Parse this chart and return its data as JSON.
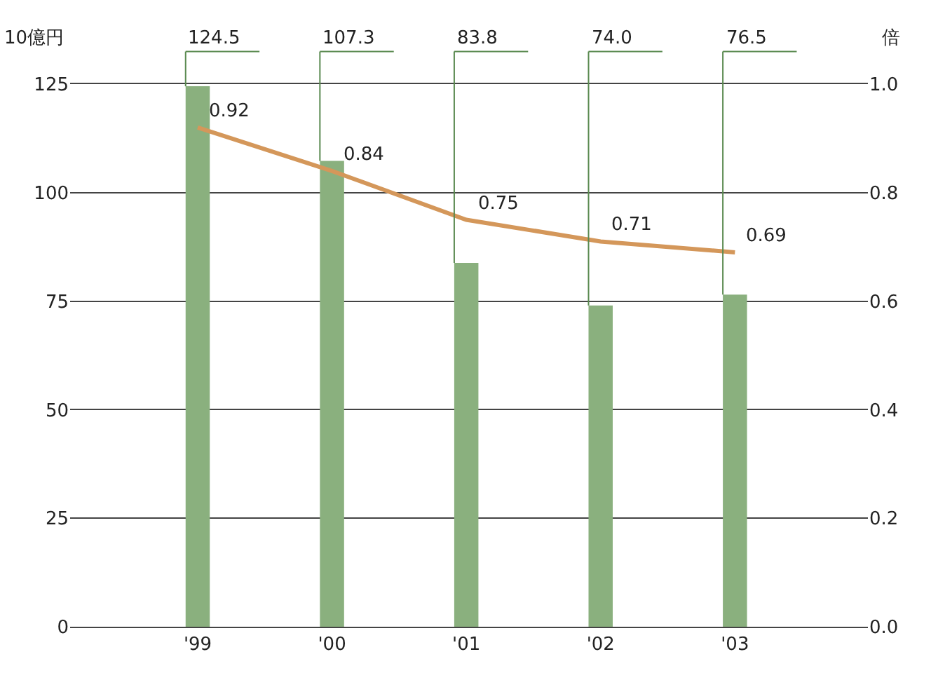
{
  "chart_data": {
    "type": "bar",
    "ylabel": "10億円",
    "y2label": "倍",
    "categories": [
      "'99",
      "'00",
      "'01",
      "'02",
      "'03"
    ],
    "series": [
      {
        "color": "#8ab07e",
        "values": [
          124.5,
          107.3,
          83.8,
          74.0,
          76.5
        ],
        "value_labels": [
          "124.5",
          "107.3",
          "83.8",
          "74.0",
          "76.5"
        ]
      },
      {
        "type": "line",
        "axis": "y2",
        "color": "#d4975a",
        "values": [
          0.92,
          0.84,
          0.75,
          0.71,
          0.69
        ],
        "value_labels": [
          "0.92",
          "0.84",
          "0.75",
          "0.71",
          "0.69"
        ]
      }
    ],
    "ylim": [
      0,
      125
    ],
    "yticks": [
      0,
      25,
      50,
      75,
      100,
      125
    ],
    "y2lim": [
      0,
      1.0
    ],
    "y2ticks": [
      {
        "value": 0,
        "label": "0.0"
      },
      {
        "value": 0.2,
        "label": "0.2"
      },
      {
        "value": 0.4,
        "label": "0.4"
      },
      {
        "value": 0.6,
        "label": "0.6"
      },
      {
        "value": 0.8,
        "label": "0.8"
      },
      {
        "value": 1.0,
        "label": "1.0"
      }
    ],
    "grid": "y",
    "marker": "none",
    "line_style": "solid"
  }
}
